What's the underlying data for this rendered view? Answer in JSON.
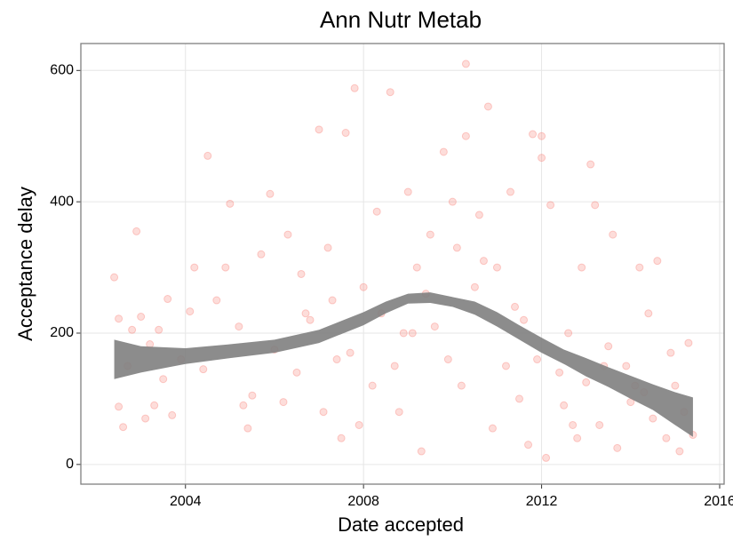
{
  "chart_data": {
    "type": "scatter",
    "title": "Ann Nutr Metab",
    "x_label": "Date accepted",
    "y_label": "Acceptance delay",
    "xlim": [
      2001.65,
      2016.1
    ],
    "ylim": [
      -30,
      641
    ],
    "xticks": [
      2004,
      2008,
      2012,
      2016
    ],
    "yticks": [
      0,
      200,
      400,
      600
    ],
    "grid": true,
    "color": "#f8766d",
    "x": [
      2002.4,
      2002.5,
      2002.5,
      2002.6,
      2002.7,
      2002.8,
      2002.9,
      2003.0,
      2003.1,
      2003.2,
      2003.3,
      2003.4,
      2003.5,
      2003.6,
      2003.7,
      2003.9,
      2004.1,
      2004.2,
      2004.4,
      2004.5,
      2004.7,
      2004.9,
      2005.0,
      2005.2,
      2005.4,
      2005.5,
      2005.7,
      2005.9,
      2006.0,
      2006.2,
      2006.3,
      2006.5,
      2006.6,
      2006.8,
      2007.0,
      2007.1,
      2007.2,
      2007.3,
      2007.5,
      2007.6,
      2007.7,
      2007.8,
      2007.9,
      2008.0,
      2008.2,
      2008.3,
      2008.4,
      2008.6,
      2008.7,
      2008.8,
      2009.0,
      2009.1,
      2009.2,
      2009.3,
      2009.5,
      2009.6,
      2009.8,
      2009.9,
      2010.0,
      2010.1,
      2010.2,
      2010.3,
      2010.3,
      2010.5,
      2010.6,
      2010.8,
      2010.9,
      2011.0,
      2011.2,
      2011.3,
      2011.5,
      2011.6,
      2011.7,
      2011.8,
      2011.9,
      2012.0,
      2012.0,
      2012.1,
      2012.2,
      2012.4,
      2012.5,
      2012.6,
      2012.8,
      2012.9,
      2013.0,
      2013.1,
      2013.2,
      2013.3,
      2013.5,
      2013.6,
      2013.7,
      2013.9,
      2014.0,
      2014.1,
      2014.2,
      2014.4,
      2014.5,
      2014.6,
      2014.8,
      2014.9,
      2015.0,
      2015.1,
      2015.2,
      2015.3,
      2015.4,
      2005.3,
      2006.7,
      2007.4,
      2008.9,
      2009.4,
      2010.7,
      2011.4,
      2012.7,
      2013.4,
      2014.3
    ],
    "values": [
      285,
      222,
      88,
      57,
      150,
      205,
      355,
      225,
      70,
      183,
      90,
      205,
      130,
      252,
      75,
      160,
      233,
      300,
      145,
      470,
      250,
      300,
      397,
      210,
      55,
      105,
      320,
      412,
      175,
      95,
      350,
      140,
      290,
      220,
      510,
      80,
      330,
      250,
      40,
      505,
      170,
      573,
      60,
      270,
      120,
      385,
      230,
      567,
      150,
      80,
      415,
      200,
      300,
      20,
      350,
      210,
      476,
      160,
      400,
      330,
      120,
      610,
      500,
      270,
      380,
      545,
      55,
      300,
      150,
      415,
      100,
      220,
      30,
      503,
      160,
      500,
      467,
      10,
      395,
      140,
      90,
      200,
      40,
      300,
      125,
      457,
      395,
      60,
      180,
      350,
      25,
      150,
      95,
      120,
      300,
      230,
      70,
      310,
      40,
      170,
      120,
      20,
      80,
      185,
      45,
      90,
      230,
      160,
      200,
      260,
      310,
      240,
      60,
      150,
      110
    ],
    "band": {
      "color": "#808080",
      "x": [
        2002.4,
        2003,
        2004,
        2005,
        2006,
        2007,
        2008,
        2008.5,
        2009,
        2009.5,
        2010,
        2010.5,
        2011,
        2011.5,
        2012,
        2012.5,
        2013,
        2013.5,
        2014,
        2014.5,
        2015,
        2015.4
      ],
      "lower": [
        130,
        140,
        153,
        162,
        170,
        185,
        212,
        230,
        245,
        246,
        240,
        228,
        210,
        190,
        170,
        153,
        134,
        118,
        100,
        83,
        60,
        42
      ],
      "upper": [
        190,
        180,
        177,
        183,
        190,
        205,
        232,
        248,
        260,
        262,
        255,
        248,
        232,
        212,
        193,
        175,
        162,
        148,
        135,
        122,
        110,
        102
      ]
    }
  }
}
